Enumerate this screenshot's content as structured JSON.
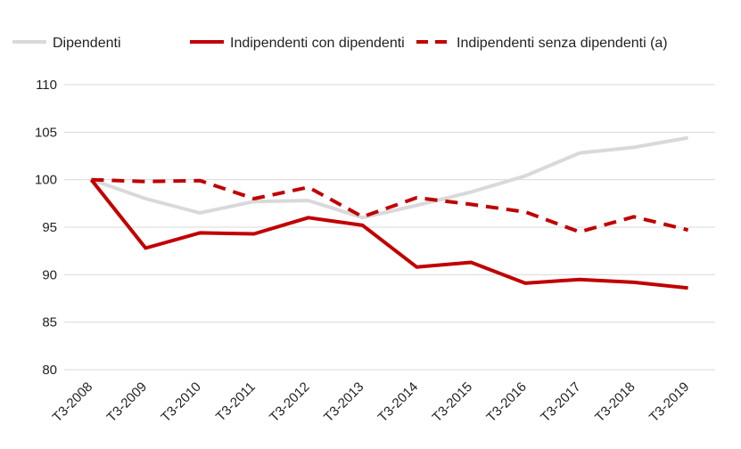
{
  "chart_data": {
    "type": "line",
    "title": "",
    "xlabel": "",
    "ylabel": "",
    "categories": [
      "T3-2008",
      "T3-2009",
      "T3-2010",
      "T3-2011",
      "T3-2012",
      "T3-2013",
      "T3-2014",
      "T3-2015",
      "T3-2016",
      "T3-2017",
      "T3-2018",
      "T3-2019"
    ],
    "ylim": [
      80,
      110
    ],
    "yticks": [
      80,
      85,
      90,
      95,
      100,
      105,
      110
    ],
    "grid": true,
    "legend_position": "top",
    "series": [
      {
        "name": "Dipendenti",
        "color": "#d9d9d9",
        "style": "solid",
        "values": [
          100,
          98.0,
          96.5,
          97.7,
          97.8,
          96.0,
          97.3,
          98.7,
          100.4,
          102.8,
          103.4,
          104.4
        ]
      },
      {
        "name": "Indipendenti con dipendenti",
        "color": "#c00000",
        "style": "solid",
        "values": [
          100,
          92.8,
          94.4,
          94.3,
          96.0,
          95.2,
          90.8,
          91.3,
          89.1,
          89.5,
          89.2,
          88.6
        ]
      },
      {
        "name": "Indipendenti senza dipendenti (a)",
        "color": "#c00000",
        "style": "dashed",
        "values": [
          100,
          99.8,
          99.9,
          98.0,
          99.2,
          96.1,
          98.1,
          97.4,
          96.6,
          94.5,
          96.1,
          94.7
        ]
      }
    ]
  }
}
